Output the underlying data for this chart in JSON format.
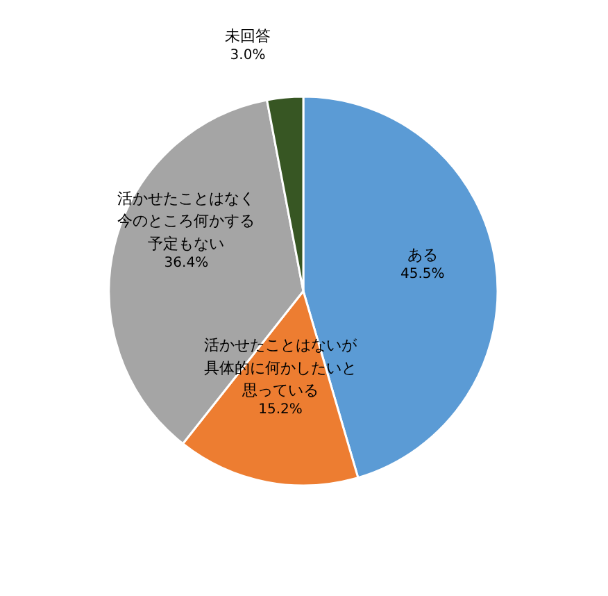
{
  "chart_data": {
    "type": "pie",
    "categories": [
      "ある",
      "活かせたことはないが具体的に何かしたいと思っている",
      "活かせたことはなく今のところ何かする予定もない",
      "未回答"
    ],
    "values": [
      45.5,
      15.2,
      36.4,
      3.0
    ],
    "colors": [
      "#5b9bd5",
      "#ed7d31",
      "#a5a5a5",
      "#375623"
    ],
    "value_labels": [
      "45.5%",
      "15.2%",
      "36.4%",
      "3.0%"
    ]
  }
}
